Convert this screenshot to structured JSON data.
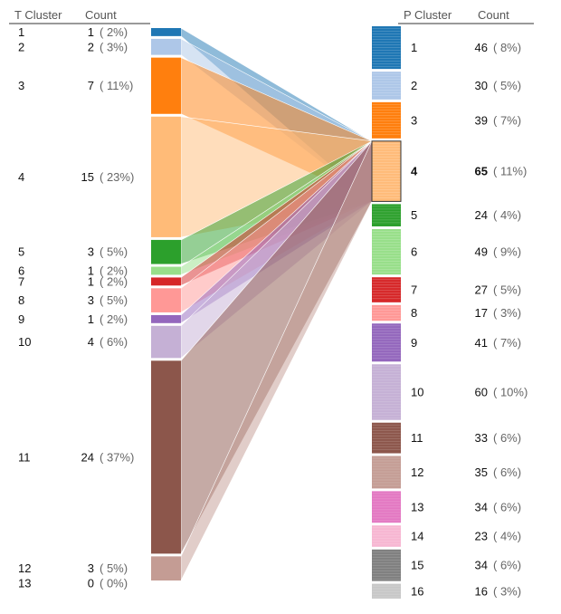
{
  "headers": {
    "t_cluster": "T Cluster",
    "t_count": "Count",
    "p_cluster": "P Cluster",
    "p_count": "Count"
  },
  "chart_data": {
    "type": "parallel-sets",
    "highlighted_p_cluster": "4",
    "left": [
      {
        "id": "1",
        "count": 1,
        "pct": "( 2%)",
        "color": "#1f77b4"
      },
      {
        "id": "2",
        "count": 2,
        "pct": "( 3%)",
        "color": "#aec7e8"
      },
      {
        "id": "3",
        "count": 7,
        "pct": "( 11%)",
        "color": "#ff7f0e"
      },
      {
        "id": "4",
        "count": 15,
        "pct": "( 23%)",
        "color": "#ffbb78"
      },
      {
        "id": "5",
        "count": 3,
        "pct": "( 5%)",
        "color": "#2ca02c"
      },
      {
        "id": "6",
        "count": 1,
        "pct": "( 2%)",
        "color": "#98df8a"
      },
      {
        "id": "7",
        "count": 1,
        "pct": "( 2%)",
        "color": "#d62728"
      },
      {
        "id": "8",
        "count": 3,
        "pct": "( 5%)",
        "color": "#ff9896"
      },
      {
        "id": "9",
        "count": 1,
        "pct": "( 2%)",
        "color": "#9467bd"
      },
      {
        "id": "10",
        "count": 4,
        "pct": "( 6%)",
        "color": "#c5b0d5"
      },
      {
        "id": "11",
        "count": 24,
        "pct": "( 37%)",
        "color": "#8c564b"
      },
      {
        "id": "12",
        "count": 3,
        "pct": "( 5%)",
        "color": "#c49c94"
      },
      {
        "id": "13",
        "count": 0,
        "pct": "( 0%)",
        "color": "#e377c2"
      }
    ],
    "right": [
      {
        "id": "1",
        "count": 46,
        "pct": "( 8%)",
        "color": "#1f77b4"
      },
      {
        "id": "2",
        "count": 30,
        "pct": "( 5%)",
        "color": "#aec7e8"
      },
      {
        "id": "3",
        "count": 39,
        "pct": "( 7%)",
        "color": "#ff7f0e"
      },
      {
        "id": "4",
        "count": 65,
        "pct": "( 11%)",
        "color": "#ffbb78"
      },
      {
        "id": "5",
        "count": 24,
        "pct": "( 4%)",
        "color": "#2ca02c"
      },
      {
        "id": "6",
        "count": 49,
        "pct": "( 9%)",
        "color": "#98df8a"
      },
      {
        "id": "7",
        "count": 27,
        "pct": "( 5%)",
        "color": "#d62728"
      },
      {
        "id": "8",
        "count": 17,
        "pct": "( 3%)",
        "color": "#ff9896"
      },
      {
        "id": "9",
        "count": 41,
        "pct": "( 7%)",
        "color": "#9467bd"
      },
      {
        "id": "10",
        "count": 60,
        "pct": "( 10%)",
        "color": "#c5b0d5"
      },
      {
        "id": "11",
        "count": 33,
        "pct": "( 6%)",
        "color": "#8c564b"
      },
      {
        "id": "12",
        "count": 35,
        "pct": "( 6%)",
        "color": "#c49c94"
      },
      {
        "id": "13",
        "count": 34,
        "pct": "( 6%)",
        "color": "#e377c2"
      },
      {
        "id": "14",
        "count": 23,
        "pct": "( 4%)",
        "color": "#f7b6d2"
      },
      {
        "id": "15",
        "count": 34,
        "pct": "( 6%)",
        "color": "#7f7f7f"
      },
      {
        "id": "16",
        "count": 16,
        "pct": "( 3%)",
        "color": "#c7c7c7"
      }
    ]
  }
}
